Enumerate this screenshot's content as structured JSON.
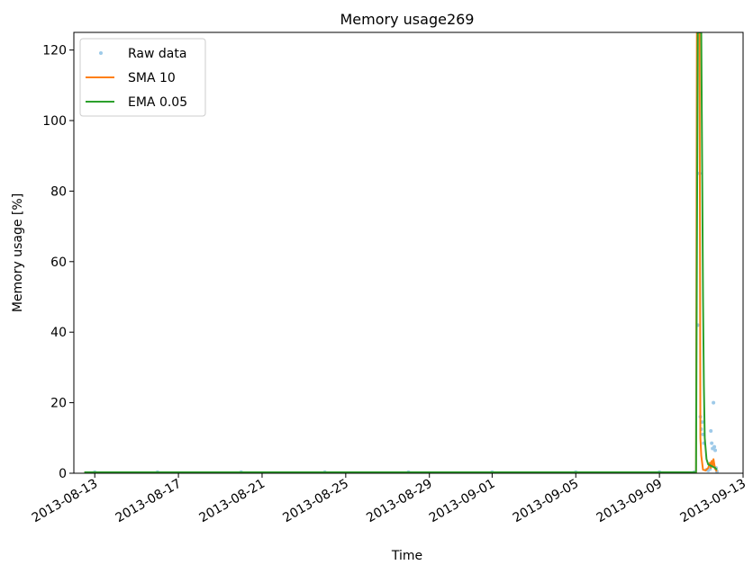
{
  "chart_data": {
    "type": "line",
    "title": "Memory usage269",
    "xlabel": "Time",
    "ylabel": "Memory usage [%]",
    "xlim": [
      "2013-08-12",
      "2013-09-13"
    ],
    "ylim": [
      0,
      125
    ],
    "x_ticks": [
      "2013-08-13",
      "2013-08-17",
      "2013-08-21",
      "2013-08-25",
      "2013-08-29",
      "2013-09-01",
      "2013-09-05",
      "2013-09-09",
      "2013-09-13"
    ],
    "y_ticks": [
      0,
      20,
      40,
      60,
      80,
      100,
      120
    ],
    "grid": false,
    "legend_position": "top-left",
    "series": [
      {
        "name": "Raw data",
        "style": "points",
        "color": "#9ecae9",
        "points": [
          [
            "2013-08-13T00:00",
            0.3
          ],
          [
            "2013-08-16T00:00",
            0.3
          ],
          [
            "2013-08-20T00:00",
            0.3
          ],
          [
            "2013-08-24T00:00",
            0.3
          ],
          [
            "2013-08-28T00:00",
            0.3
          ],
          [
            "2013-09-01T00:00",
            0.3
          ],
          [
            "2013-09-05T00:00",
            0.3
          ],
          [
            "2013-09-09T00:00",
            0.3
          ],
          [
            "2013-09-10T16:00",
            0.3
          ],
          [
            "2013-09-10T20:00",
            42.0
          ],
          [
            "2013-09-10T22:00",
            85.0
          ],
          [
            "2013-09-10T23:00",
            16.0
          ],
          [
            "2013-09-11T00:00",
            12.5
          ],
          [
            "2013-09-11T01:00",
            14.5
          ],
          [
            "2013-09-11T02:00",
            11.0
          ],
          [
            "2013-09-11T03:00",
            8.5
          ],
          [
            "2013-09-11T06:00",
            1.0
          ],
          [
            "2013-09-11T08:00",
            0.8
          ],
          [
            "2013-09-11T10:00",
            1.2
          ],
          [
            "2013-09-11T11:00",
            12.0
          ],
          [
            "2013-09-11T12:00",
            8.5
          ],
          [
            "2013-09-11T13:00",
            7.0
          ],
          [
            "2013-09-11T14:00",
            20.0
          ],
          [
            "2013-09-11T15:00",
            7.5
          ],
          [
            "2013-09-11T16:00",
            6.5
          ],
          [
            "2013-09-11T17:00",
            1.5
          ],
          [
            "2013-09-11T18:00",
            0.5
          ]
        ]
      },
      {
        "name": "SMA 10",
        "style": "line",
        "color": "#ff7f0e",
        "points": [
          [
            "2013-08-12T12:00",
            0.2
          ],
          [
            "2013-09-10T18:00",
            0.2
          ],
          [
            "2013-09-10T19:00",
            125
          ],
          [
            "2013-09-10T22:00",
            125
          ],
          [
            "2013-09-10T23:00",
            10.0
          ],
          [
            "2013-09-11T00:00",
            5.0
          ],
          [
            "2013-09-11T02:00",
            1.0
          ],
          [
            "2013-09-11T05:00",
            0.8
          ],
          [
            "2013-09-11T08:00",
            1.5
          ],
          [
            "2013-09-11T10:00",
            3.0
          ],
          [
            "2013-09-11T11:00",
            1.5
          ],
          [
            "2013-09-11T12:00",
            3.5
          ],
          [
            "2013-09-11T13:00",
            2.0
          ],
          [
            "2013-09-11T14:00",
            4.0
          ],
          [
            "2013-09-11T15:00",
            2.5
          ],
          [
            "2013-09-11T16:00",
            1.2
          ],
          [
            "2013-09-11T18:00",
            0.5
          ]
        ]
      },
      {
        "name": "EMA 0.05",
        "style": "line",
        "color": "#2ca02c",
        "points": [
          [
            "2013-08-12T12:00",
            0.3
          ],
          [
            "2013-09-10T18:00",
            0.3
          ],
          [
            "2013-09-10T20:00",
            125
          ],
          [
            "2013-09-10T22:00",
            125
          ],
          [
            "2013-09-11T00:00",
            125
          ],
          [
            "2013-09-11T02:00",
            50.0
          ],
          [
            "2013-09-11T03:00",
            25.0
          ],
          [
            "2013-09-11T04:00",
            10.0
          ],
          [
            "2013-09-11T06:00",
            4.0
          ],
          [
            "2013-09-11T08:00",
            2.5
          ],
          [
            "2013-09-11T12:00",
            2.0
          ],
          [
            "2013-09-11T16:00",
            1.5
          ],
          [
            "2013-09-11T18:00",
            1.0
          ]
        ]
      }
    ]
  }
}
